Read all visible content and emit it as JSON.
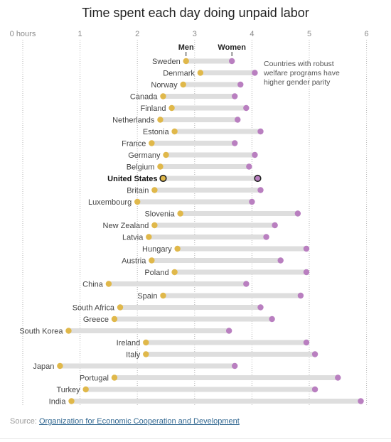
{
  "chart_data": {
    "type": "dot",
    "title": "Time spent each day doing unpaid labor",
    "xunit_label": "hours",
    "xlim": [
      0,
      6
    ],
    "xticks": [
      0,
      1,
      2,
      3,
      4,
      5,
      6
    ],
    "xtick_labels": [
      "0 hours",
      "1",
      "2",
      "3",
      "4",
      "5",
      "6"
    ],
    "grid": true,
    "series": [
      {
        "name": "Men",
        "color": "#e0b84a"
      },
      {
        "name": "Women",
        "color": "#b97fc0"
      }
    ],
    "highlight": "United States",
    "annotation": "Countries with robust welfare programs have higher gender parity",
    "rows": [
      {
        "country": "Sweden",
        "men": 2.85,
        "women": 3.65
      },
      {
        "country": "Denmark",
        "men": 3.1,
        "women": 4.05
      },
      {
        "country": "Norway",
        "men": 2.8,
        "women": 3.8
      },
      {
        "country": "Canada",
        "men": 2.45,
        "women": 3.7
      },
      {
        "country": "Finland",
        "men": 2.6,
        "women": 3.9
      },
      {
        "country": "Netherlands",
        "men": 2.4,
        "women": 3.75
      },
      {
        "country": "Estonia",
        "men": 2.65,
        "women": 4.15
      },
      {
        "country": "France",
        "men": 2.25,
        "women": 3.7
      },
      {
        "country": "Germany",
        "men": 2.5,
        "women": 4.05
      },
      {
        "country": "Belgium",
        "men": 2.4,
        "women": 3.95
      },
      {
        "country": "United States",
        "men": 2.45,
        "women": 4.1
      },
      {
        "country": "Britain",
        "men": 2.3,
        "women": 4.15
      },
      {
        "country": "Luxembourg",
        "men": 2.0,
        "women": 4.0
      },
      {
        "country": "Slovenia",
        "men": 2.75,
        "women": 4.8
      },
      {
        "country": "New Zealand",
        "men": 2.3,
        "women": 4.4
      },
      {
        "country": "Latvia",
        "men": 2.2,
        "women": 4.25
      },
      {
        "country": "Hungary",
        "men": 2.7,
        "women": 4.95
      },
      {
        "country": "Austria",
        "men": 2.25,
        "women": 4.5
      },
      {
        "country": "Poland",
        "men": 2.65,
        "women": 4.95
      },
      {
        "country": "China",
        "men": 1.5,
        "women": 3.9
      },
      {
        "country": "Spain",
        "men": 2.45,
        "women": 4.85
      },
      {
        "country": "South Africa",
        "men": 1.7,
        "women": 4.15
      },
      {
        "country": "Greece",
        "men": 1.6,
        "women": 4.35
      },
      {
        "country": "South Korea",
        "men": 0.8,
        "women": 3.6
      },
      {
        "country": "Ireland",
        "men": 2.15,
        "women": 4.95
      },
      {
        "country": "Italy",
        "men": 2.15,
        "women": 5.1
      },
      {
        "country": "Japan",
        "men": 0.65,
        "women": 3.7
      },
      {
        "country": "Portugal",
        "men": 1.6,
        "women": 5.5
      },
      {
        "country": "Turkey",
        "men": 1.1,
        "women": 5.1
      },
      {
        "country": "India",
        "men": 0.85,
        "women": 5.9
      }
    ]
  },
  "source": {
    "prefix": "Source: ",
    "link_text": "Organization for Economic Cooperation and Development"
  }
}
